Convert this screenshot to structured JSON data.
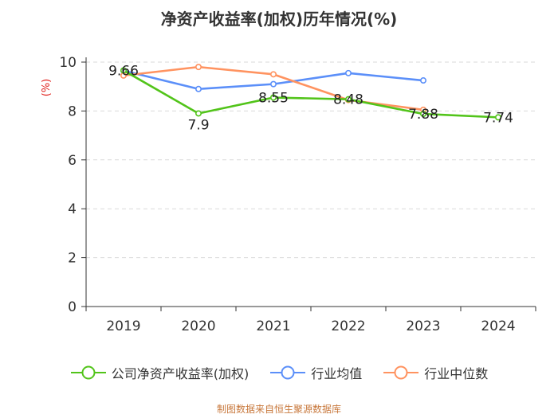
{
  "source_note": "制图数据来自恒生聚源数据库",
  "chart_data": {
    "type": "line",
    "title": "净资产收益率(加权)历年情况(%)",
    "xlabel": "",
    "ylabel": "(%)",
    "ylim": [
      0,
      10
    ],
    "yticks": [
      0,
      2,
      4,
      6,
      8,
      10
    ],
    "grid": true,
    "legend_position": "bottom",
    "categories": [
      "2019",
      "2020",
      "2021",
      "2022",
      "2023",
      "2024"
    ],
    "series": [
      {
        "name": "公司净资产收益率(加权)",
        "color": "#52c41a",
        "values": [
          9.66,
          7.9,
          8.55,
          8.48,
          7.88,
          7.74
        ],
        "labels": [
          "9.66",
          "7.9",
          "8.55",
          "8.48",
          "7.88",
          "7.74"
        ]
      },
      {
        "name": "行业均值",
        "color": "#5b8ff9",
        "values": [
          9.65,
          8.9,
          9.1,
          9.55,
          9.25,
          null
        ]
      },
      {
        "name": "行业中位数",
        "color": "#ff9360",
        "values": [
          9.45,
          9.8,
          9.5,
          8.45,
          8.05,
          null
        ]
      }
    ]
  }
}
